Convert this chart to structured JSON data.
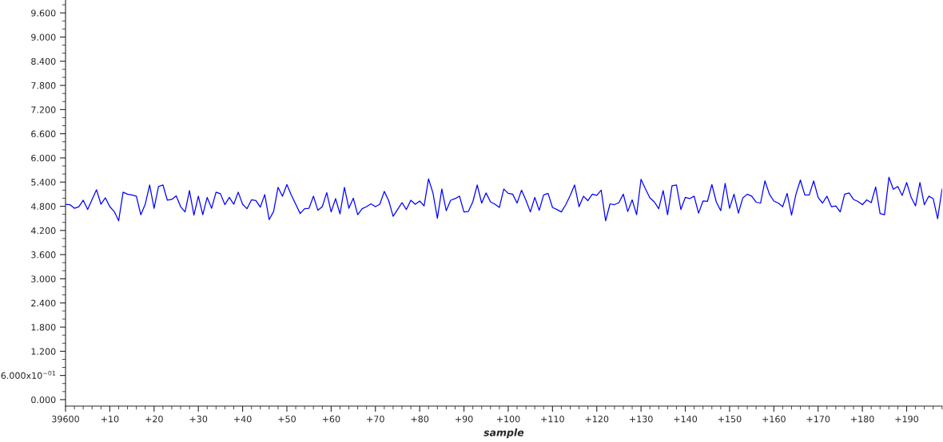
{
  "chart_data": {
    "type": "line",
    "xlabel": "sample",
    "categories": [
      "39600",
      null,
      null,
      null,
      null,
      null,
      null,
      null,
      null,
      null,
      "+10",
      null,
      null,
      null,
      null,
      null,
      null,
      null,
      null,
      null,
      "+20",
      null,
      null,
      null,
      null,
      null,
      null,
      null,
      null,
      null,
      "+30",
      null,
      null,
      null,
      null,
      null,
      null,
      null,
      null,
      null,
      "+40",
      null,
      null,
      null,
      null,
      null,
      null,
      null,
      null,
      null,
      "+50",
      null,
      null,
      null,
      null,
      null,
      null,
      null,
      null,
      null,
      "+60",
      null,
      null,
      null,
      null,
      null,
      null,
      null,
      null,
      null,
      "+70",
      null,
      null,
      null,
      null,
      null,
      null,
      null,
      null,
      null,
      "+80",
      null,
      null,
      null,
      null,
      null,
      null,
      null,
      null,
      null,
      "+90",
      null,
      null,
      null,
      null,
      null,
      null,
      null,
      null,
      null,
      "+100",
      null,
      null,
      null,
      null,
      null,
      null,
      null,
      null,
      null,
      "+110",
      null,
      null,
      null,
      null,
      null,
      null,
      null,
      null,
      null,
      "+120",
      null,
      null,
      null,
      null,
      null,
      null,
      null,
      null,
      null,
      "+130",
      null,
      null,
      null,
      null,
      null,
      null,
      null,
      null,
      null,
      "+140",
      null,
      null,
      null,
      null,
      null,
      null,
      null,
      null,
      null,
      "+150",
      null,
      null,
      null,
      null,
      null,
      null,
      null,
      null,
      null,
      "+160",
      null,
      null,
      null,
      null,
      null,
      null,
      null,
      null,
      null,
      "+170",
      null,
      null,
      null,
      null,
      null,
      null,
      null,
      null,
      null,
      "+180",
      null,
      null,
      null,
      null,
      null,
      null,
      null,
      null,
      null,
      "+190",
      null,
      null,
      null,
      null,
      null,
      null,
      null,
      null
    ],
    "series": [
      {
        "color": "#0000ff",
        "values": [
          4.85,
          4.84,
          4.75,
          4.79,
          4.95,
          4.72,
          4.97,
          5.21,
          4.85,
          5.01,
          4.79,
          4.67,
          4.44,
          5.15,
          5.1,
          5.08,
          5.05,
          4.59,
          4.85,
          5.33,
          4.75,
          5.29,
          5.33,
          4.95,
          4.97,
          5.06,
          4.79,
          4.66,
          5.19,
          4.58,
          5.05,
          4.59,
          5.02,
          4.75,
          5.15,
          5.11,
          4.84,
          5.02,
          4.85,
          5.15,
          4.85,
          4.74,
          4.96,
          4.94,
          4.78,
          5.09,
          4.47,
          4.67,
          5.27,
          5.05,
          5.34,
          5.08,
          4.85,
          4.62,
          4.74,
          4.75,
          5.05,
          4.7,
          4.79,
          5.14,
          4.66,
          4.99,
          4.61,
          5.27,
          4.75,
          5.0,
          4.59,
          4.74,
          4.79,
          4.86,
          4.79,
          4.85,
          5.17,
          4.94,
          4.55,
          4.72,
          4.89,
          4.72,
          4.95,
          4.85,
          4.93,
          4.81,
          5.48,
          5.13,
          4.5,
          5.23,
          4.69,
          4.95,
          4.99,
          5.05,
          4.66,
          4.67,
          4.91,
          5.33,
          4.88,
          5.13,
          4.91,
          4.85,
          4.77,
          5.23,
          5.12,
          5.1,
          4.88,
          5.2,
          4.95,
          4.66,
          5.02,
          4.7,
          5.08,
          5.12,
          4.77,
          4.72,
          4.66,
          4.84,
          5.07,
          5.33,
          4.79,
          5.05,
          4.94,
          5.1,
          5.07,
          5.2,
          4.44,
          4.86,
          4.84,
          4.89,
          5.1,
          4.67,
          4.96,
          4.59,
          5.47,
          5.23,
          5.01,
          4.91,
          4.74,
          5.19,
          4.59,
          5.31,
          5.33,
          4.72,
          5.02,
          4.99,
          5.05,
          4.63,
          4.93,
          4.92,
          5.34,
          4.91,
          4.69,
          5.37,
          4.75,
          5.1,
          4.63,
          5.01,
          5.1,
          5.05,
          4.9,
          4.88,
          5.43,
          5.1,
          4.93,
          4.88,
          4.79,
          5.12,
          4.58,
          5.1,
          5.45,
          5.08,
          5.08,
          5.43,
          5.02,
          4.88,
          5.05,
          4.79,
          4.81,
          4.66,
          5.1,
          5.13,
          4.97,
          4.92,
          4.84,
          4.96,
          4.89,
          5.28,
          4.62,
          4.59,
          5.52,
          5.22,
          5.29,
          5.07,
          5.39,
          5.03,
          4.81,
          5.39,
          4.84,
          5.05,
          4.99,
          4.49,
          5.23
        ]
      }
    ],
    "ylim": [
      -0.16,
      9.92
    ],
    "yticks": [
      {
        "value": 0,
        "label": "0.000"
      },
      {
        "value": 0.6,
        "label": "6.000x10$^{−01}$"
      },
      {
        "value": 1.2,
        "label": "1.200"
      },
      {
        "value": 1.8,
        "label": "1.800"
      },
      {
        "value": 2.4,
        "label": "2.400"
      },
      {
        "value": 3.0,
        "label": "3.000"
      },
      {
        "value": 3.6,
        "label": "3.600"
      },
      {
        "value": 4.2,
        "label": "4.200"
      },
      {
        "value": 4.8,
        "label": "4.800"
      },
      {
        "value": 5.4,
        "label": "5.400"
      },
      {
        "value": 6.0,
        "label": "6.000"
      },
      {
        "value": 6.6,
        "label": "6.600"
      },
      {
        "value": 7.2,
        "label": "7.200"
      },
      {
        "value": 7.8,
        "label": "7.800"
      },
      {
        "value": 8.4,
        "label": "8.400"
      },
      {
        "value": 9.0,
        "label": "9.000"
      },
      {
        "value": 9.6,
        "label": "9.600"
      }
    ],
    "grid": false,
    "legend": false,
    "marker": "none",
    "line_style": "solid"
  }
}
